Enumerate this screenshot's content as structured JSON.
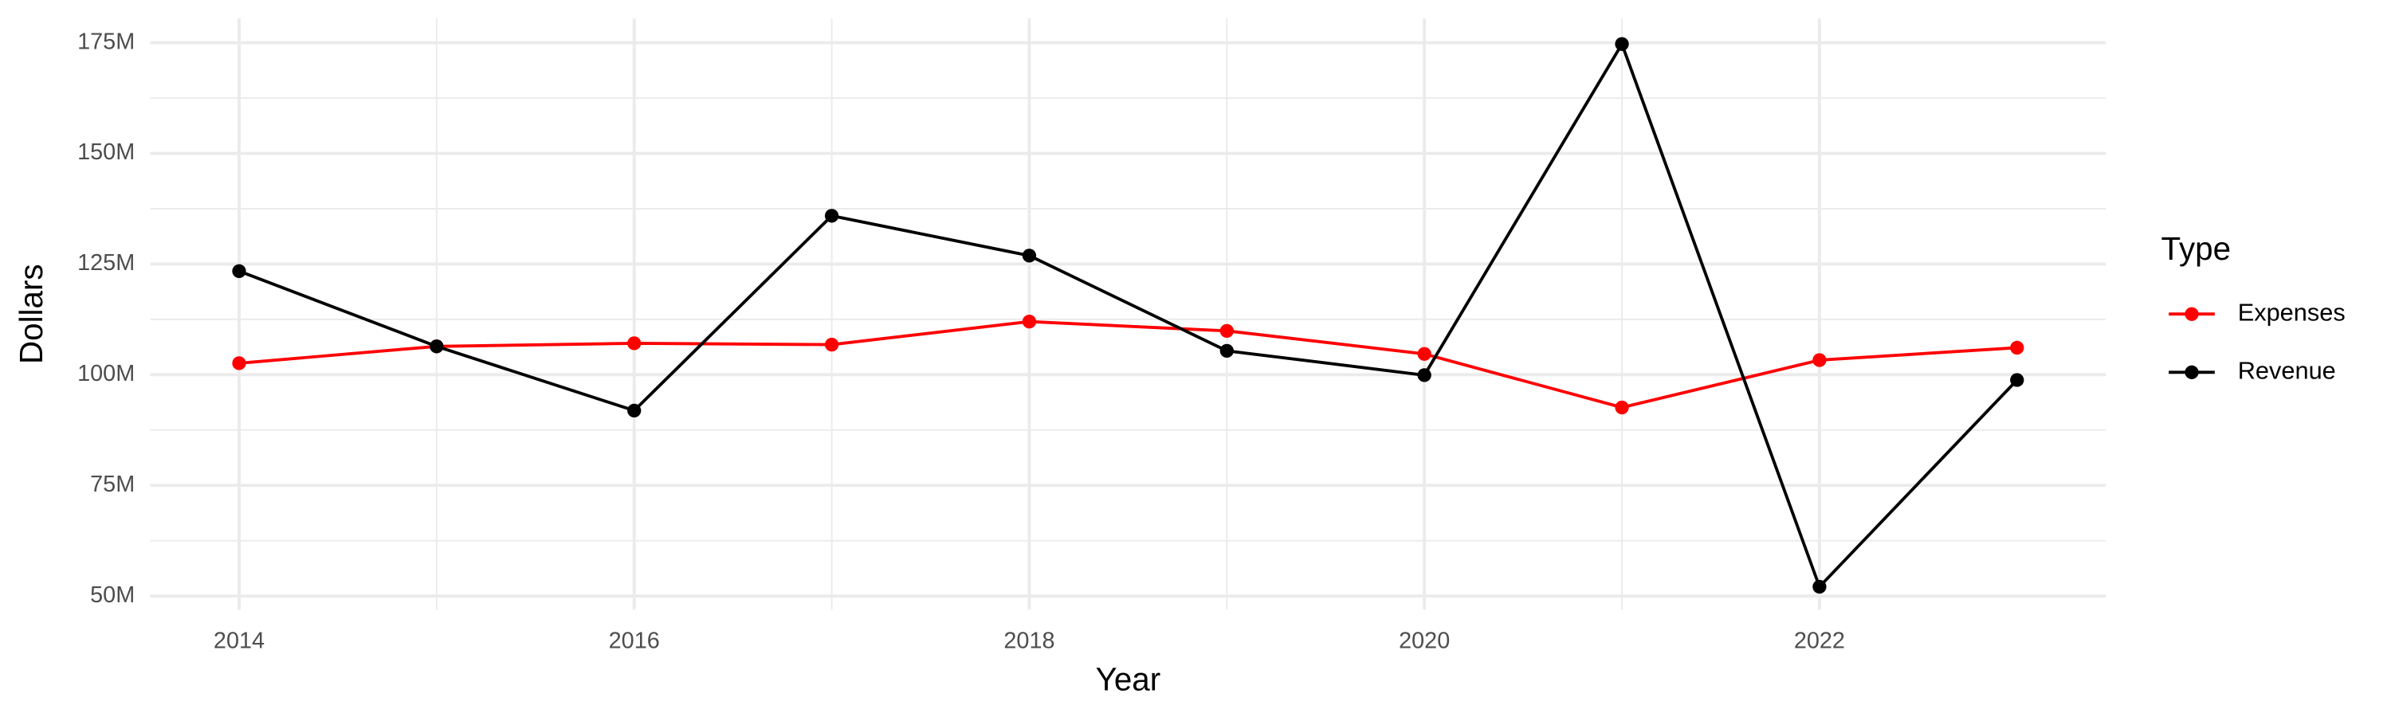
{
  "chart_data": {
    "type": "line",
    "x_label": "Year",
    "y_label": "Dollars",
    "legend_title": "Type",
    "legend_position": "right",
    "grid": true,
    "x": [
      2014,
      2015,
      2016,
      2017,
      2018,
      2019,
      2020,
      2021,
      2022,
      2023
    ],
    "series": [
      {
        "name": "Expenses",
        "color": "#ff0000",
        "values": [
          102600000,
          106400000,
          107100000,
          106800000,
          112000000,
          109900000,
          104700000,
          92600000,
          103300000,
          106100000
        ]
      },
      {
        "name": "Revenue",
        "color": "#000000",
        "values": [
          123400000,
          106400000,
          91900000,
          135900000,
          126900000,
          105400000,
          99900000,
          174700000,
          52100000,
          98800000
        ]
      }
    ],
    "xlim": [
      2013.55,
      2023.45
    ],
    "xticks": [
      2014,
      2016,
      2018,
      2020,
      2022
    ],
    "ylim": [
      46900000,
      180500000
    ],
    "yticks": [
      {
        "value": 50000000,
        "label": "50M"
      },
      {
        "value": 75000000,
        "label": "75M"
      },
      {
        "value": 100000000,
        "label": "100M"
      },
      {
        "value": 125000000,
        "label": "125M"
      },
      {
        "value": 150000000,
        "label": "150M"
      },
      {
        "value": 175000000,
        "label": "175M"
      }
    ]
  }
}
